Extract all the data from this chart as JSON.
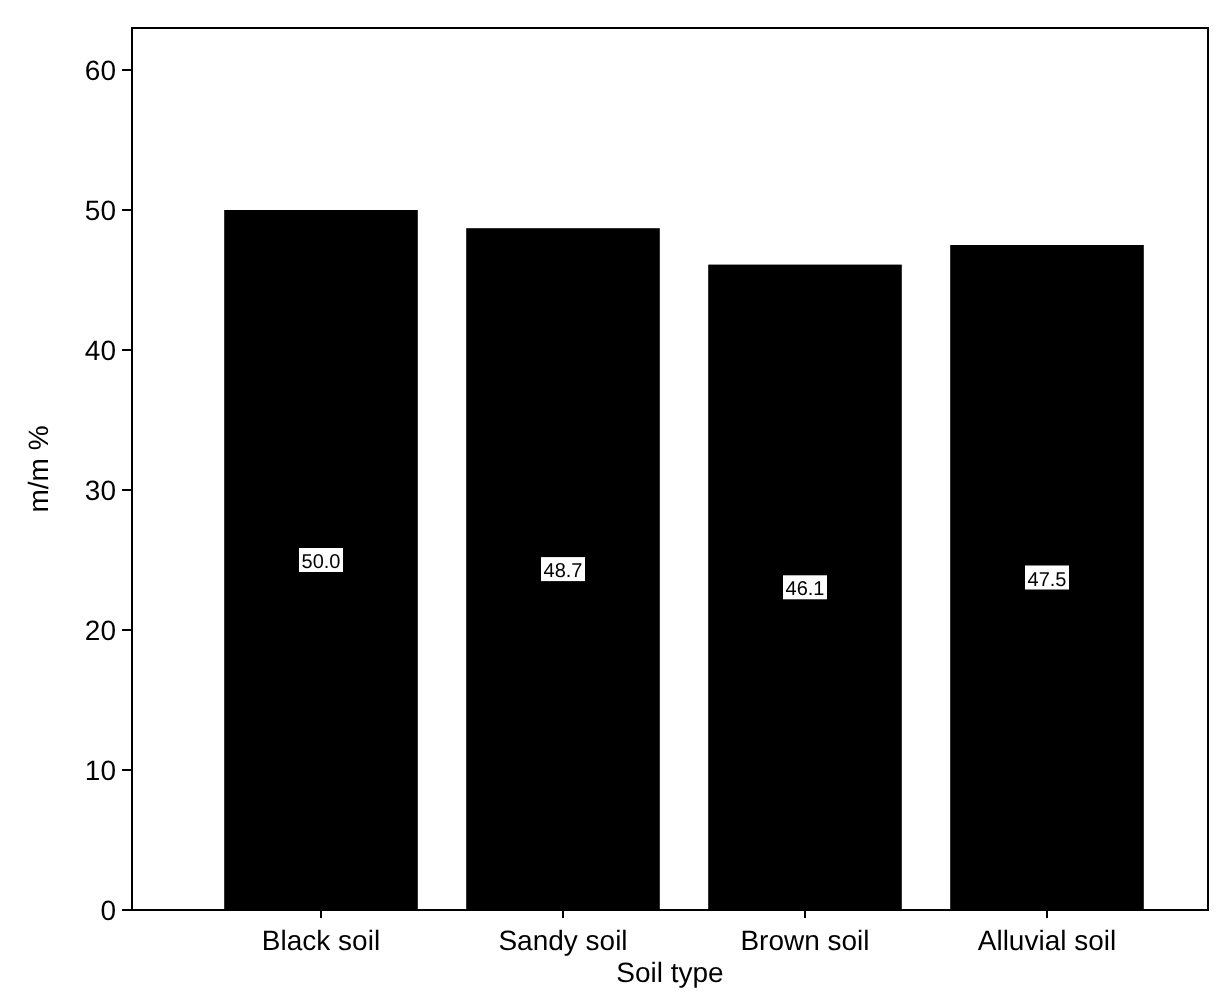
{
  "chart_data": {
    "type": "bar",
    "xlabel": "Soil type",
    "ylabel": "m/m %",
    "categories": [
      "Black soil",
      "Sandy soil",
      "Brown soil",
      "Alluvial soil"
    ],
    "values": [
      50.0,
      48.7,
      46.1,
      47.5
    ],
    "color": "#000000",
    "value_labels": [
      "50.0",
      "48.7",
      "46.1",
      "47.5"
    ],
    "ylim": [
      0,
      63
    ],
    "yticks": [
      0,
      10,
      20,
      30,
      40,
      50,
      60
    ]
  }
}
